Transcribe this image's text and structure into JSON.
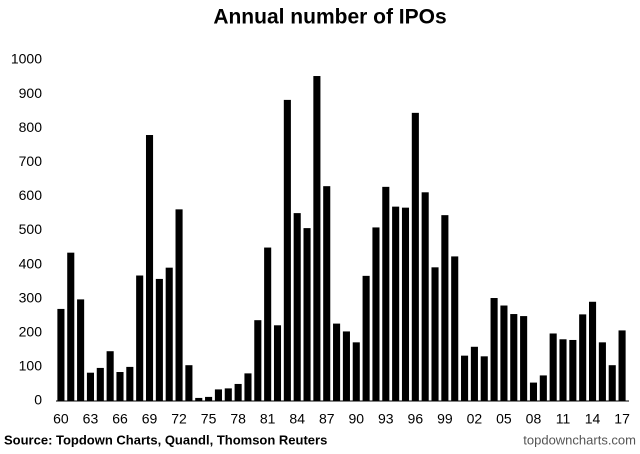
{
  "chart_data": {
    "type": "bar",
    "title": "Annual number of IPOs",
    "source": "Source: Topdown Charts, Quandl, Thomson Reuters",
    "watermark": "topdowncharts.com",
    "categories": [
      "60",
      null,
      null,
      "63",
      null,
      null,
      "66",
      null,
      null,
      "69",
      null,
      null,
      "72",
      null,
      null,
      "75",
      null,
      null,
      "78",
      null,
      null,
      "81",
      null,
      null,
      "84",
      null,
      null,
      "87",
      null,
      null,
      "90",
      null,
      null,
      "93",
      null,
      null,
      "96",
      null,
      null,
      "99",
      null,
      null,
      "02",
      null,
      null,
      "05",
      null,
      null,
      "08",
      null,
      null,
      "11",
      null,
      null,
      "14",
      null,
      null,
      "17"
    ],
    "values": [
      270,
      435,
      298,
      83,
      97,
      146,
      85,
      100,
      368,
      780,
      358,
      391,
      562,
      105,
      9,
      12,
      34,
      37,
      50,
      81,
      237,
      450,
      222,
      883,
      551,
      507,
      953,
      630,
      227,
      204,
      172,
      367,
      509,
      628,
      570,
      567,
      845,
      612,
      392,
      545,
      424,
      133,
      159,
      131,
      302,
      280,
      255,
      249,
      54,
      75,
      198,
      181,
      179,
      254,
      291,
      172,
      105,
      207
    ],
    "color": "#000000",
    "ylim": [
      0,
      1000
    ],
    "yticks": [
      0,
      100,
      200,
      300,
      400,
      500,
      600,
      700,
      800,
      900,
      1000
    ],
    "grid": false
  }
}
